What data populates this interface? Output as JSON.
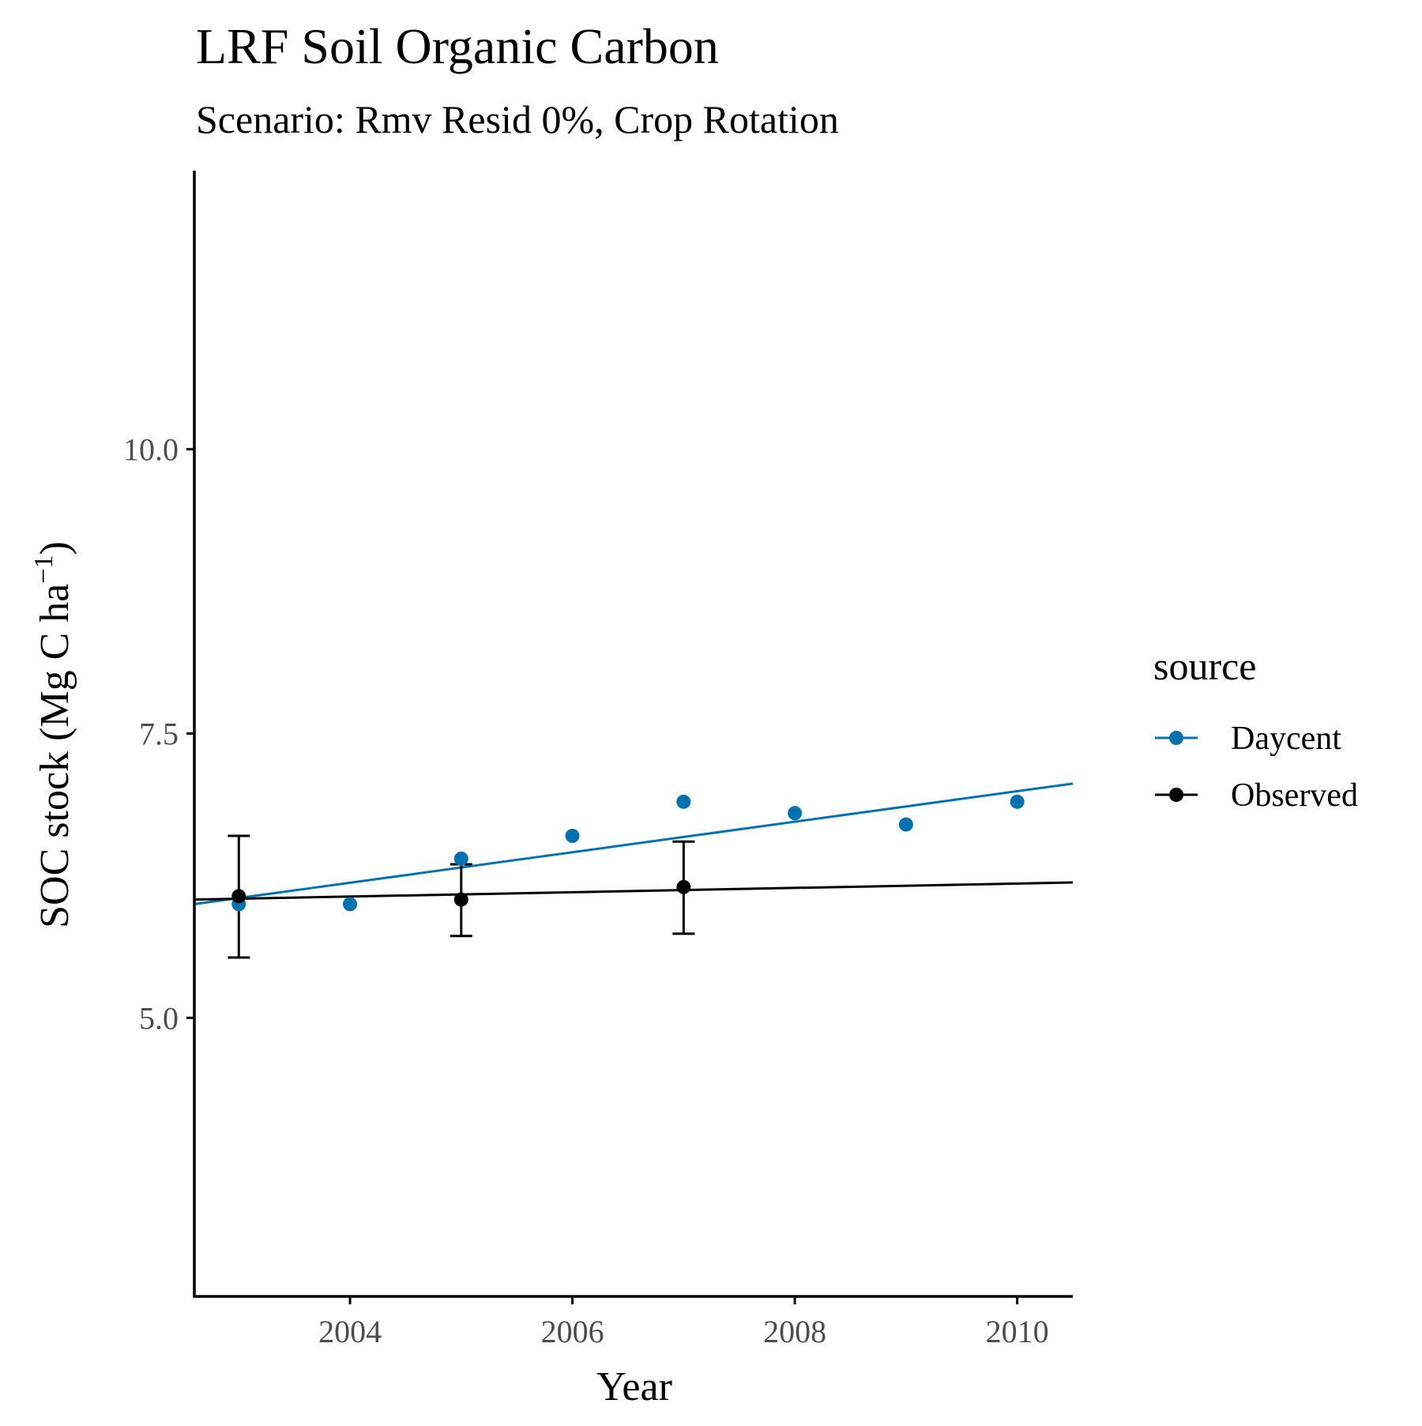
{
  "chart_data": {
    "type": "scatter",
    "title": "LRF Soil Organic Carbon",
    "subtitle": "Scenario: Rmv Resid 0%, Crop Rotation",
    "xlabel": "Year",
    "ylabel": "SOC stock (Mg C ha",
    "ylabel_superscript": "−1",
    "ylabel_close": ")",
    "xlim": [
      2002.6,
      2010.5
    ],
    "ylim": [
      2.55,
      12.45
    ],
    "xticks": [
      2004,
      2006,
      2008,
      2010
    ],
    "yticks": [
      5.0,
      7.5,
      10.0
    ],
    "ytick_labels": [
      "5.0",
      "7.5",
      "10.0"
    ],
    "grid": false,
    "legend": {
      "title": "source",
      "position": "right",
      "entries": [
        "Daycent",
        "Observed"
      ]
    },
    "series": [
      {
        "name": "Daycent",
        "color": "#0072B2",
        "x": [
          2003,
          2004,
          2005,
          2006,
          2007,
          2008,
          2009,
          2010
        ],
        "y": [
          6.0,
          6.0,
          6.4,
          6.6,
          6.9,
          6.8,
          6.7,
          6.9
        ],
        "trendline": {
          "x": [
            2002.6,
            2010.5
          ],
          "y": [
            6.0,
            7.06
          ]
        }
      },
      {
        "name": "Observed",
        "color": "#000000",
        "x": [
          2003,
          2005,
          2007
        ],
        "y": [
          6.07,
          6.04,
          6.15
        ],
        "error_low": [
          5.53,
          5.72,
          5.74
        ],
        "error_high": [
          6.6,
          6.35,
          6.55
        ],
        "trendline": {
          "x": [
            2002.6,
            2010.5
          ],
          "y": [
            6.04,
            6.19
          ]
        }
      }
    ]
  }
}
